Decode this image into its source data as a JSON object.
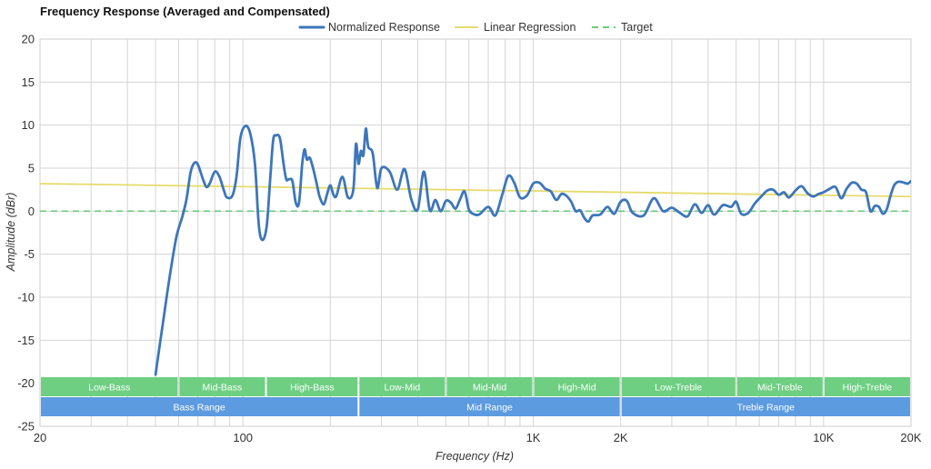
{
  "chart_data": {
    "type": "line",
    "title": "Frequency Response (Averaged and Compensated)",
    "xlabel": "Frequency (Hz)",
    "ylabel": "Amplitude (dBr)",
    "xscale": "log",
    "xlim": [
      20,
      20000
    ],
    "ylim": [
      -25,
      20
    ],
    "grid": true,
    "legend_position": "top-center",
    "x_ticks": [
      20,
      100,
      1000,
      2000,
      10000,
      20000
    ],
    "x_tick_labels": [
      "20",
      "100",
      "1K",
      "2K",
      "10K",
      "20K"
    ],
    "y_ticks": [
      -25,
      -20,
      -15,
      -10,
      -5,
      0,
      5,
      10,
      15,
      20
    ],
    "y_tick_labels": [
      "-25",
      "-20",
      "-15",
      "-10",
      "-5",
      "0",
      "5",
      "10",
      "15",
      "20"
    ],
    "colors": {
      "normalized": "#3d76ba",
      "regression": "#e6dc6e",
      "target": "#6cca7e",
      "band_top": "#6ecf82",
      "band_bottom": "#5d9be0",
      "grid": "#d4d4d4",
      "axis": "#cccccc"
    },
    "series": [
      {
        "name": "Normalized Response",
        "style": "solid",
        "x": [
          50,
          53,
          56,
          59,
          62,
          64,
          66,
          68,
          70,
          73,
          75,
          77,
          80,
          83,
          86,
          88,
          92,
          95,
          98,
          102,
          106,
          110,
          113,
          115,
          118,
          121,
          124,
          127,
          130,
          134,
          138,
          141,
          144,
          148,
          152,
          156,
          160,
          163,
          166,
          170,
          175,
          180,
          184,
          190,
          195,
          200,
          205,
          210,
          220,
          230,
          240,
          245,
          250,
          255,
          260,
          265,
          270,
          280,
          290,
          300,
          320,
          340,
          360,
          380,
          400,
          420,
          440,
          460,
          480,
          500,
          520,
          540,
          560,
          580,
          600,
          620,
          650,
          700,
          740,
          780,
          820,
          860,
          900,
          950,
          1000,
          1050,
          1100,
          1150,
          1200,
          1250,
          1300,
          1350,
          1400,
          1450,
          1500,
          1550,
          1600,
          1700,
          1800,
          1900,
          2000,
          2100,
          2200,
          2400,
          2600,
          2800,
          3000,
          3200,
          3400,
          3600,
          3800,
          4000,
          4200,
          4500,
          4800,
          5000,
          5200,
          5500,
          5800,
          6100,
          6400,
          6700,
          7000,
          7300,
          7600,
          8000,
          8400,
          8800,
          9200,
          9600,
          10000,
          10500,
          11000,
          11500,
          12000,
          12500,
          13000,
          13500,
          14000,
          14500,
          15000,
          15500,
          16000,
          16500,
          17000,
          17500,
          18000,
          18500,
          19000,
          19500,
          20000
        ],
        "y": [
          -19,
          -13,
          -7.5,
          -3,
          -0.5,
          1.5,
          4.5,
          5.6,
          5.4,
          3.6,
          2.8,
          3.3,
          4.6,
          4,
          2.4,
          1.6,
          1.8,
          4,
          8.5,
          9.9,
          9,
          5.5,
          -1,
          -3,
          -3.2,
          -1.5,
          3.5,
          8.2,
          8.8,
          8.5,
          5.5,
          3.7,
          3.7,
          3.5,
          1,
          1,
          5.5,
          7.2,
          6,
          6.2,
          4.8,
          3,
          1.6,
          0.8,
          2,
          3,
          1.9,
          1.8,
          4,
          1.6,
          2.5,
          7.8,
          5.5,
          7,
          6.5,
          9.6,
          7.5,
          6.7,
          2.7,
          5,
          4.6,
          2.5,
          4.9,
          1.4,
          0.2,
          4.6,
          0.1,
          1.3,
          0,
          1.2,
          1,
          0.3,
          1.4,
          2.3,
          0.2,
          -0.3,
          -0.4,
          0.5,
          -0.5,
          1.8,
          4.1,
          3.3,
          1.6,
          1.8,
          3.2,
          3.3,
          2.6,
          2.3,
          1.3,
          2,
          1.8,
          1.1,
          0,
          0.1,
          -0.8,
          -1.2,
          -0.5,
          -0.4,
          0.5,
          -0.3,
          1.1,
          1.2,
          -0.2,
          -0.5,
          1.5,
          0,
          0.4,
          -0.2,
          -0.6,
          0.8,
          -0.2,
          0.7,
          -0.4,
          0.7,
          0.5,
          1.1,
          -0.3,
          -0.2,
          0.9,
          1.7,
          2.4,
          2.5,
          1.9,
          2.2,
          1.6,
          2.4,
          2.9,
          2.1,
          1.7,
          2,
          2.2,
          2.6,
          2.8,
          1.5,
          2.6,
          3.3,
          3.2,
          2.5,
          2.2,
          0,
          0.6,
          0.5,
          -0.3,
          0.2,
          1.8,
          3,
          3.4,
          3.4,
          3.3,
          3.2,
          3.5
        ],
        "note": ""
      },
      {
        "name": "Linear Regression",
        "style": "solid",
        "x": [
          20,
          20000
        ],
        "y": [
          3.2,
          1.7
        ]
      },
      {
        "name": "Target",
        "style": "dashed",
        "x": [
          20,
          20000
        ],
        "y": [
          0,
          0
        ]
      }
    ],
    "bands": [
      {
        "row": "top",
        "label": "Low-Bass",
        "from": 20,
        "to": 60
      },
      {
        "row": "top",
        "label": "Mid-Bass",
        "from": 60,
        "to": 120
      },
      {
        "row": "top",
        "label": "High-Bass",
        "from": 120,
        "to": 250
      },
      {
        "row": "top",
        "label": "Low-Mid",
        "from": 250,
        "to": 500
      },
      {
        "row": "top",
        "label": "Mid-Mid",
        "from": 500,
        "to": 1000
      },
      {
        "row": "top",
        "label": "High-Mid",
        "from": 1000,
        "to": 2000
      },
      {
        "row": "top",
        "label": "Low-Treble",
        "from": 2000,
        "to": 5000
      },
      {
        "row": "top",
        "label": "Mid-Treble",
        "from": 5000,
        "to": 10000
      },
      {
        "row": "top",
        "label": "High-Treble",
        "from": 10000,
        "to": 20000
      },
      {
        "row": "bottom",
        "label": "Bass Range",
        "from": 20,
        "to": 250
      },
      {
        "row": "bottom",
        "label": "Mid Range",
        "from": 250,
        "to": 2000
      },
      {
        "row": "bottom",
        "label": "Treble Range",
        "from": 2000,
        "to": 20000
      }
    ]
  }
}
